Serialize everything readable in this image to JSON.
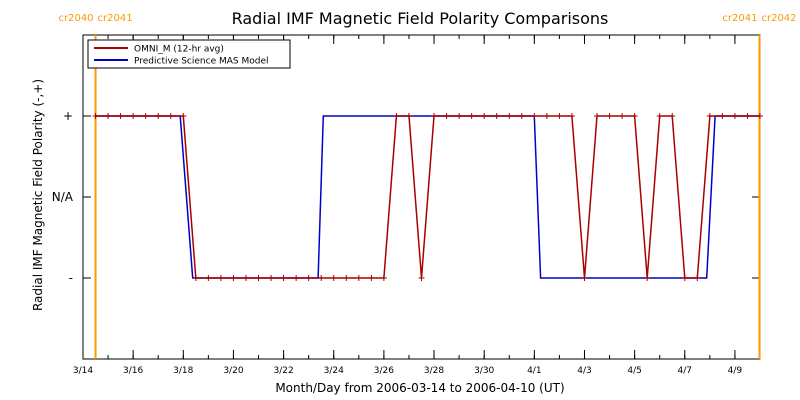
{
  "chart_data": {
    "type": "line",
    "title": "Radial IMF Magnetic Field Polarity Comparisons",
    "xlabel": "Month/Day from 2006-03-14 to 2006-04-10 (UT)",
    "ylabel": "Radial IMF Magnetic Field Polarity (-,+)",
    "x_range": [
      "2006-03-14T00:00",
      "2006-04-10T00:00"
    ],
    "y_categories": [
      "-",
      "N/A",
      "+"
    ],
    "y_values": [
      -1,
      0,
      1
    ],
    "y_range": [
      -2,
      2
    ],
    "x_ticks": [
      {
        "x": "2006-03-14",
        "label": "3/14"
      },
      {
        "x": "2006-03-16",
        "label": "3/16"
      },
      {
        "x": "2006-03-18",
        "label": "3/18"
      },
      {
        "x": "2006-03-20",
        "label": "3/20"
      },
      {
        "x": "2006-03-22",
        "label": "3/22"
      },
      {
        "x": "2006-03-24",
        "label": "3/24"
      },
      {
        "x": "2006-03-26",
        "label": "3/26"
      },
      {
        "x": "2006-03-28",
        "label": "3/28"
      },
      {
        "x": "2006-03-30",
        "label": "3/30"
      },
      {
        "x": "2006-04-01",
        "label": "4/1"
      },
      {
        "x": "2006-04-03",
        "label": "4/3"
      },
      {
        "x": "2006-04-05",
        "label": "4/5"
      },
      {
        "x": "2006-04-07",
        "label": "4/7"
      },
      {
        "x": "2006-04-09",
        "label": "4/9"
      }
    ],
    "carrington_markers": [
      {
        "x": "2006-03-14T12:00",
        "left_label": "cr2040",
        "right_label": "cr2041"
      },
      {
        "x": "2006-04-09T23:30",
        "left_label": "cr2041",
        "right_label": "cr2042"
      }
    ],
    "marker_color": "#ff9900",
    "legend": {
      "placement": "top-left"
    },
    "series": [
      {
        "name": "OMNI_M (12-hr avg)",
        "color": "#aa0000",
        "markers": true,
        "points": [
          {
            "x": "2006-03-14T12:00",
            "y": 1
          },
          {
            "x": "2006-03-15T00:00",
            "y": 1
          },
          {
            "x": "2006-03-15T12:00",
            "y": 1
          },
          {
            "x": "2006-03-16T00:00",
            "y": 1
          },
          {
            "x": "2006-03-16T12:00",
            "y": 1
          },
          {
            "x": "2006-03-17T00:00",
            "y": 1
          },
          {
            "x": "2006-03-17T12:00",
            "y": 1
          },
          {
            "x": "2006-03-18T00:00",
            "y": 1
          },
          {
            "x": "2006-03-18T12:00",
            "y": -1
          },
          {
            "x": "2006-03-19T00:00",
            "y": -1
          },
          {
            "x": "2006-03-19T12:00",
            "y": -1
          },
          {
            "x": "2006-03-20T00:00",
            "y": -1
          },
          {
            "x": "2006-03-20T12:00",
            "y": -1
          },
          {
            "x": "2006-03-21T00:00",
            "y": -1
          },
          {
            "x": "2006-03-21T12:00",
            "y": -1
          },
          {
            "x": "2006-03-22T00:00",
            "y": -1
          },
          {
            "x": "2006-03-22T12:00",
            "y": -1
          },
          {
            "x": "2006-03-23T00:00",
            "y": -1
          },
          {
            "x": "2006-03-23T12:00",
            "y": -1
          },
          {
            "x": "2006-03-24T00:00",
            "y": -1
          },
          {
            "x": "2006-03-24T12:00",
            "y": -1
          },
          {
            "x": "2006-03-25T00:00",
            "y": -1
          },
          {
            "x": "2006-03-25T12:00",
            "y": -1
          },
          {
            "x": "2006-03-26T00:00",
            "y": -1
          },
          {
            "x": "2006-03-26T12:00",
            "y": 1
          },
          {
            "x": "2006-03-27T00:00",
            "y": 1
          },
          {
            "x": "2006-03-27T12:00",
            "y": -1
          },
          {
            "x": "2006-03-28T00:00",
            "y": 1
          },
          {
            "x": "2006-03-28T12:00",
            "y": 1
          },
          {
            "x": "2006-03-29T00:00",
            "y": 1
          },
          {
            "x": "2006-03-29T12:00",
            "y": 1
          },
          {
            "x": "2006-03-30T00:00",
            "y": 1
          },
          {
            "x": "2006-03-30T12:00",
            "y": 1
          },
          {
            "x": "2006-03-31T00:00",
            "y": 1
          },
          {
            "x": "2006-03-31T12:00",
            "y": 1
          },
          {
            "x": "2006-04-01T00:00",
            "y": 1
          },
          {
            "x": "2006-04-01T12:00",
            "y": 1
          },
          {
            "x": "2006-04-02T00:00",
            "y": 1
          },
          {
            "x": "2006-04-02T12:00",
            "y": 1
          },
          {
            "x": "2006-04-03T00:00",
            "y": -1
          },
          {
            "x": "2006-04-03T12:00",
            "y": 1
          },
          {
            "x": "2006-04-04T00:00",
            "y": 1
          },
          {
            "x": "2006-04-04T12:00",
            "y": 1
          },
          {
            "x": "2006-04-05T00:00",
            "y": 1
          },
          {
            "x": "2006-04-05T12:00",
            "y": -1
          },
          {
            "x": "2006-04-06T00:00",
            "y": 1
          },
          {
            "x": "2006-04-06T12:00",
            "y": 1
          },
          {
            "x": "2006-04-07T00:00",
            "y": -1
          },
          {
            "x": "2006-04-07T12:00",
            "y": -1
          },
          {
            "x": "2006-04-08T00:00",
            "y": 1
          },
          {
            "x": "2006-04-08T12:00",
            "y": 1
          },
          {
            "x": "2006-04-09T00:00",
            "y": 1
          },
          {
            "x": "2006-04-09T12:00",
            "y": 1
          },
          {
            "x": "2006-04-10T00:00",
            "y": 1
          }
        ]
      },
      {
        "name": "Predictive Science MAS Model",
        "color": "#0000cc",
        "markers": false,
        "points": [
          {
            "x": "2006-03-14T12:00",
            "y": 1
          },
          {
            "x": "2006-03-17T21:00",
            "y": 1
          },
          {
            "x": "2006-03-18T09:00",
            "y": -1
          },
          {
            "x": "2006-03-23T09:00",
            "y": -1
          },
          {
            "x": "2006-03-23T14:00",
            "y": 1
          },
          {
            "x": "2006-04-01T00:00",
            "y": 1
          },
          {
            "x": "2006-04-01T06:00",
            "y": -1
          },
          {
            "x": "2006-04-07T21:00",
            "y": -1
          },
          {
            "x": "2006-04-08T05:00",
            "y": 1
          },
          {
            "x": "2006-04-10T00:00",
            "y": 1
          }
        ]
      }
    ]
  }
}
